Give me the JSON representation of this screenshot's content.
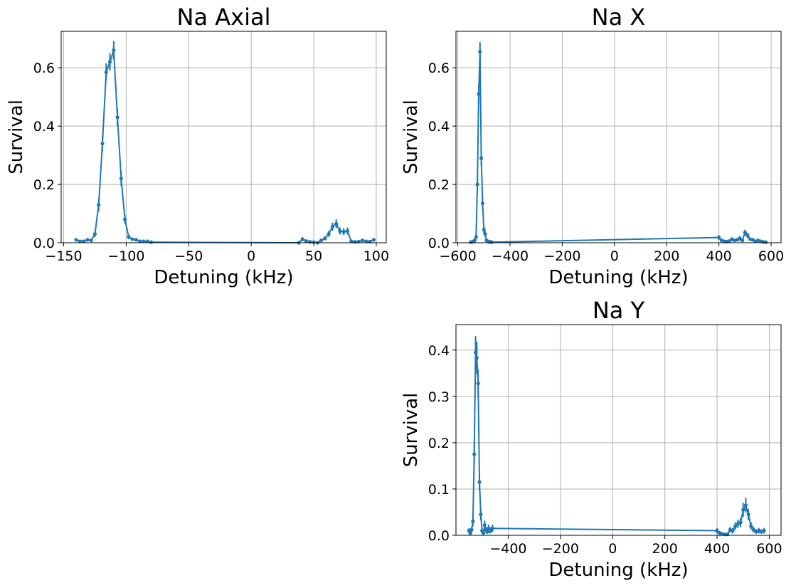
{
  "figure": {
    "background": "#ffffff",
    "series_color": "#1f77b4",
    "grid_color": "#b0b0b0"
  },
  "chart_data": [
    {
      "type": "line",
      "title": "Na Axial",
      "xlabel": "Detuning (kHz)",
      "ylabel": "Survival",
      "xlim": [
        -152,
        108
      ],
      "ylim": [
        0,
        0.725
      ],
      "xticks": [
        -150,
        -100,
        -50,
        0,
        50,
        100
      ],
      "xtick_labels": [
        "−150",
        "−100",
        "−50",
        "0",
        "50",
        "100"
      ],
      "yticks": [
        0.0,
        0.2,
        0.4,
        0.6
      ],
      "ytick_labels": [
        "0.0",
        "0.2",
        "0.4",
        "0.6"
      ],
      "grid": true,
      "legend": "none",
      "series": [
        {
          "color": "#1f77b4",
          "x": [
            -140,
            -137,
            -134,
            -131,
            -128,
            -125,
            -122,
            -119,
            -116,
            -113,
            -110,
            -107,
            -104,
            -101,
            -98,
            -95,
            -92,
            -89,
            -86,
            -83,
            -80,
            38,
            41,
            44,
            47,
            50,
            53,
            56,
            59,
            62,
            65,
            68,
            71,
            74,
            77,
            80,
            83,
            86,
            89,
            92,
            95,
            98
          ],
          "y": [
            0.01,
            0.005,
            0.005,
            0.01,
            0.008,
            0.03,
            0.13,
            0.34,
            0.585,
            0.62,
            0.66,
            0.43,
            0.22,
            0.08,
            0.02,
            0.012,
            0.01,
            0.005,
            0.005,
            0.005,
            0.002,
            0.0,
            0.012,
            0.006,
            0.003,
            0.002,
            0.0,
            0.008,
            0.015,
            0.03,
            0.055,
            0.065,
            0.04,
            0.038,
            0.04,
            0.005,
            0.003,
            0.004,
            0.008,
            0.005,
            0.004,
            0.01
          ],
          "err": [
            0.005,
            0.004,
            0.004,
            0.005,
            0.005,
            0.01,
            0.022,
            0.028,
            0.03,
            0.03,
            0.032,
            0.03,
            0.025,
            0.015,
            0.008,
            0.006,
            0.005,
            0.004,
            0.004,
            0.004,
            0.003,
            0.003,
            0.007,
            0.005,
            0.004,
            0.003,
            0.003,
            0.005,
            0.007,
            0.01,
            0.014,
            0.015,
            0.012,
            0.012,
            0.012,
            0.004,
            0.003,
            0.003,
            0.005,
            0.004,
            0.003,
            0.006
          ]
        }
      ]
    },
    {
      "type": "line",
      "title": "Na X",
      "xlabel": "Detuning (kHz)",
      "ylabel": "Survival",
      "xlim": [
        -607,
        638
      ],
      "ylim": [
        0,
        0.725
      ],
      "xticks": [
        -600,
        -400,
        -200,
        0,
        200,
        400,
        600
      ],
      "xtick_labels": [
        "−600",
        "−400",
        "−200",
        "0",
        "200",
        "400",
        "600"
      ],
      "yticks": [
        0.0,
        0.2,
        0.4,
        0.6
      ],
      "ytick_labels": [
        "0.0",
        "0.2",
        "0.4",
        "0.6"
      ],
      "grid": true,
      "legend": "none",
      "series": [
        {
          "color": "#1f77b4",
          "x": [
            -550,
            -545,
            -540,
            -535,
            -530,
            -525,
            -520,
            -515,
            -510,
            -505,
            -500,
            -495,
            -490,
            -485,
            -480,
            -475,
            -470,
            400,
            410,
            420,
            430,
            440,
            450,
            460,
            470,
            480,
            490,
            500,
            510,
            520,
            530,
            540,
            550,
            560,
            570,
            580
          ],
          "y": [
            0.002,
            0.003,
            0.005,
            0.008,
            0.02,
            0.2,
            0.51,
            0.655,
            0.29,
            0.135,
            0.045,
            0.03,
            0.008,
            0.005,
            0.003,
            0.003,
            0.002,
            0.018,
            0.008,
            0.005,
            0.004,
            0.006,
            0.012,
            0.008,
            0.01,
            0.015,
            0.008,
            0.035,
            0.025,
            0.012,
            0.01,
            0.005,
            0.008,
            0.005,
            0.003,
            0.002
          ],
          "err": [
            0.003,
            0.003,
            0.004,
            0.005,
            0.008,
            0.025,
            0.032,
            0.033,
            0.028,
            0.02,
            0.012,
            0.01,
            0.005,
            0.004,
            0.003,
            0.003,
            0.003,
            0.008,
            0.005,
            0.004,
            0.004,
            0.005,
            0.007,
            0.005,
            0.006,
            0.008,
            0.005,
            0.01,
            0.009,
            0.006,
            0.006,
            0.004,
            0.005,
            0.004,
            0.003,
            0.003
          ]
        }
      ]
    },
    {
      "type": "line",
      "title": "Na Y",
      "xlabel": "Detuning (kHz)",
      "ylabel": "Survival",
      "xlim": [
        -600,
        645
      ],
      "ylim": [
        0,
        0.455
      ],
      "xticks": [
        -400,
        -200,
        0,
        200,
        400,
        600
      ],
      "xtick_labels": [
        "−400",
        "−200",
        "0",
        "200",
        "400",
        "600"
      ],
      "yticks": [
        0.0,
        0.1,
        0.2,
        0.3,
        0.4
      ],
      "ytick_labels": [
        "0.0",
        "0.1",
        "0.2",
        "0.3",
        "0.4"
      ],
      "grid": true,
      "legend": "none",
      "series": [
        {
          "color": "#1f77b4",
          "x": [
            -550,
            -545,
            -540,
            -535,
            -530,
            -525,
            -520,
            -515,
            -510,
            -505,
            -500,
            -495,
            -490,
            -485,
            -480,
            -475,
            -470,
            -465,
            -460,
            400,
            410,
            420,
            430,
            440,
            450,
            460,
            470,
            480,
            490,
            500,
            510,
            520,
            530,
            540,
            550,
            560,
            570,
            580
          ],
          "y": [
            0.01,
            0.005,
            0.012,
            0.03,
            0.175,
            0.395,
            0.383,
            0.328,
            0.115,
            0.045,
            0.01,
            0.005,
            0.022,
            0.012,
            0.008,
            0.015,
            0.01,
            0.012,
            0.015,
            0.01,
            0.005,
            0.003,
            0.002,
            0.002,
            0.012,
            0.01,
            0.02,
            0.025,
            0.028,
            0.055,
            0.065,
            0.045,
            0.02,
            0.012,
            0.008,
            0.01,
            0.008,
            0.01
          ],
          "err": [
            0.006,
            0.004,
            0.006,
            0.01,
            0.022,
            0.035,
            0.035,
            0.03,
            0.018,
            0.012,
            0.005,
            0.004,
            0.01,
            0.006,
            0.005,
            0.008,
            0.006,
            0.006,
            0.008,
            0.006,
            0.004,
            0.003,
            0.003,
            0.003,
            0.006,
            0.006,
            0.008,
            0.009,
            0.01,
            0.015,
            0.016,
            0.012,
            0.008,
            0.006,
            0.005,
            0.006,
            0.005,
            0.006
          ]
        }
      ]
    }
  ]
}
